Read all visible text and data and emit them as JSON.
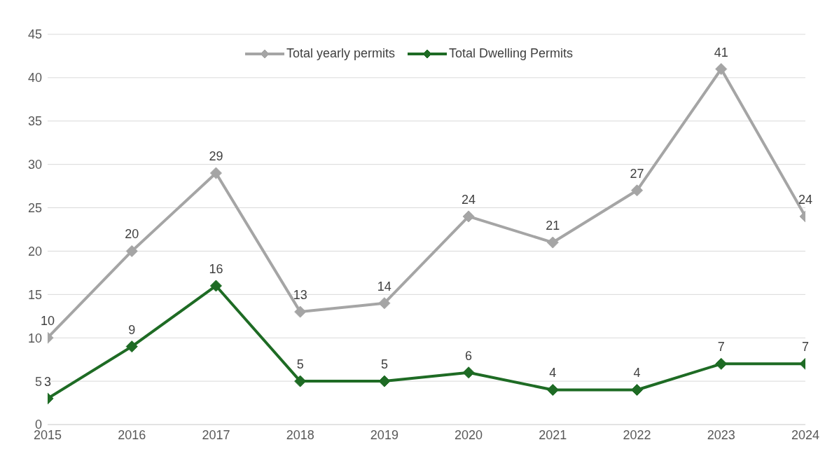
{
  "chart_data": {
    "type": "line",
    "x": [
      2015,
      2016,
      2017,
      2018,
      2019,
      2020,
      2021,
      2022,
      2023,
      2024
    ],
    "series": [
      {
        "name": "Total yearly permits",
        "color": "#a5a5a5",
        "values": [
          10,
          20,
          29,
          13,
          14,
          24,
          21,
          27,
          41,
          24
        ]
      },
      {
        "name": "Total Dwelling Permits",
        "color": "#1e6b24",
        "values": [
          3,
          9,
          16,
          5,
          5,
          6,
          4,
          4,
          7,
          7
        ]
      }
    ],
    "xlim": [
      2015,
      2024
    ],
    "xticks": [
      2015,
      2016,
      2017,
      2018,
      2019,
      2020,
      2021,
      2022,
      2023,
      2024
    ],
    "ylim": [
      0,
      45
    ],
    "yticks": [
      0,
      5,
      10,
      15,
      20,
      25,
      30,
      35,
      40,
      45
    ],
    "grid": "y",
    "legend": "top",
    "marker": "diamond",
    "line_style": "solid",
    "data_labels": true
  }
}
